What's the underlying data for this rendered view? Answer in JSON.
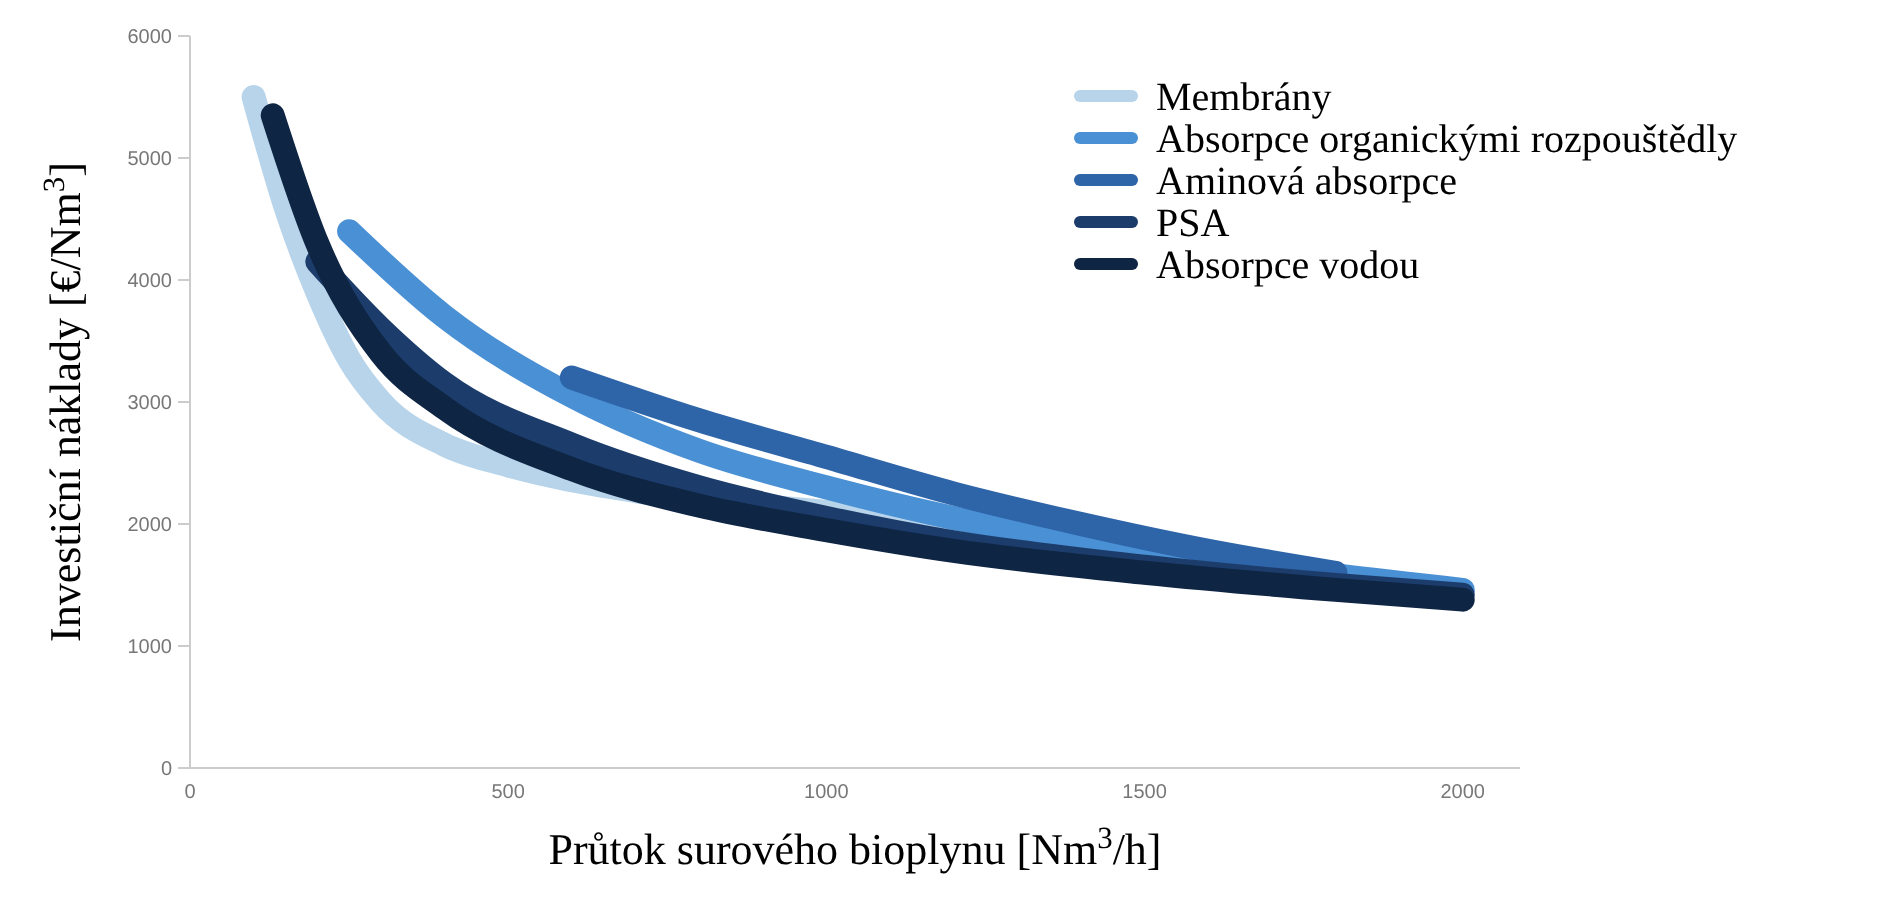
{
  "chart_data": {
    "type": "line",
    "xlabel": "Průtok surového bioplynu [Nm$^{3}$/h]",
    "ylabel": "Investiční náklady [€/Nm$^{3}$]",
    "xlim": [
      0,
      2090
    ],
    "ylim": [
      0,
      6000
    ],
    "xticks": [
      0,
      500,
      1000,
      1500,
      2000
    ],
    "yticks": [
      0,
      1000,
      2000,
      3000,
      4000,
      5000,
      6000
    ],
    "grid": false,
    "legend": "top right",
    "line_style": "solid",
    "series": [
      {
        "name": "Membrány",
        "color": "#b8d4ea",
        "x": [
          100,
          150,
          200,
          250,
          300,
          400,
          500,
          700,
          1000,
          1400
        ],
        "values": [
          5500,
          4600,
          3900,
          3350,
          3000,
          2650,
          2480,
          2270,
          2100,
          1950
        ]
      },
      {
        "name": "Absorpce organickými rozpouštědly",
        "color": "#4a90d4",
        "x": [
          250,
          400,
          600,
          800,
          1000,
          1200,
          1500,
          1800,
          2000
        ],
        "values": [
          4400,
          3700,
          3050,
          2600,
          2300,
          2050,
          1800,
          1580,
          1460
        ]
      },
      {
        "name": "Aminová absorpce",
        "color": "#2e64a8",
        "x": [
          600,
          800,
          1000,
          1200,
          1400,
          1600,
          1800
        ],
        "values": [
          3200,
          2850,
          2550,
          2250,
          2000,
          1780,
          1600
        ]
      },
      {
        "name": "PSA",
        "color": "#1c3d6c",
        "x": [
          200,
          300,
          400,
          600,
          800,
          1000,
          1200,
          1500,
          1800,
          2000
        ],
        "values": [
          4150,
          3600,
          3150,
          2650,
          2300,
          2050,
          1850,
          1650,
          1500,
          1420
        ]
      },
      {
        "name": "Absorpce vodou",
        "color": "#0f2544",
        "x": [
          130,
          200,
          300,
          400,
          600,
          800,
          1000,
          1200,
          1500,
          1800,
          2000
        ],
        "values": [
          5350,
          4300,
          3400,
          2950,
          2450,
          2150,
          1950,
          1780,
          1600,
          1460,
          1380
        ]
      }
    ]
  }
}
